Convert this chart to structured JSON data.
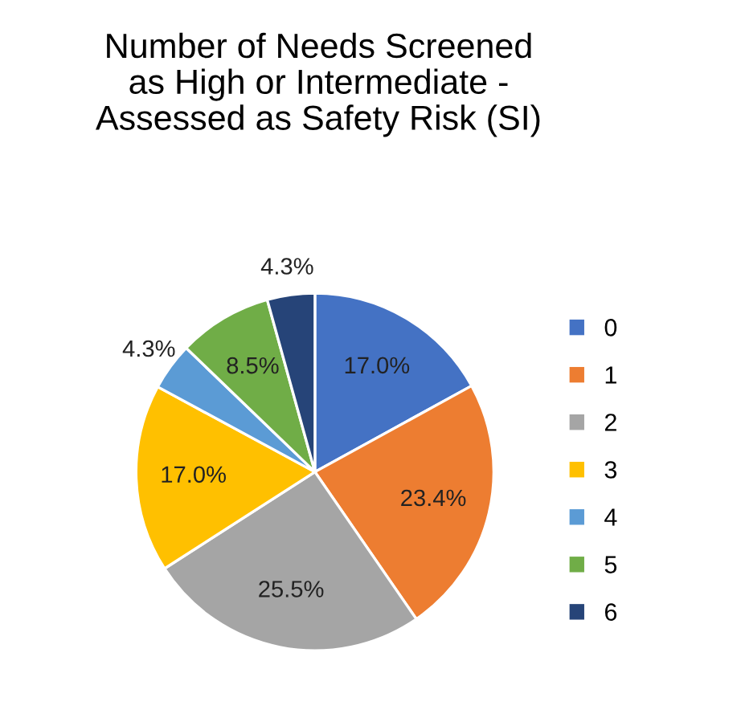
{
  "chart_data": {
    "type": "pie",
    "title": "Number of Needs Screened\nas High or Intermediate -\nAssessed as Safety Risk (SI)",
    "categories": [
      "0",
      "1",
      "2",
      "3",
      "4",
      "5",
      "6"
    ],
    "values": [
      17.0,
      23.4,
      25.5,
      17.0,
      4.3,
      8.5,
      4.3
    ],
    "value_labels": [
      "17.0%",
      "23.4%",
      "25.5%",
      "17.0%",
      "4.3%",
      "8.5%",
      "4.3%"
    ],
    "colors": [
      "#4472c4",
      "#ed7d31",
      "#a5a5a5",
      "#ffc000",
      "#5b9bd5",
      "#70ad47",
      "#264478"
    ],
    "legend": "right"
  }
}
